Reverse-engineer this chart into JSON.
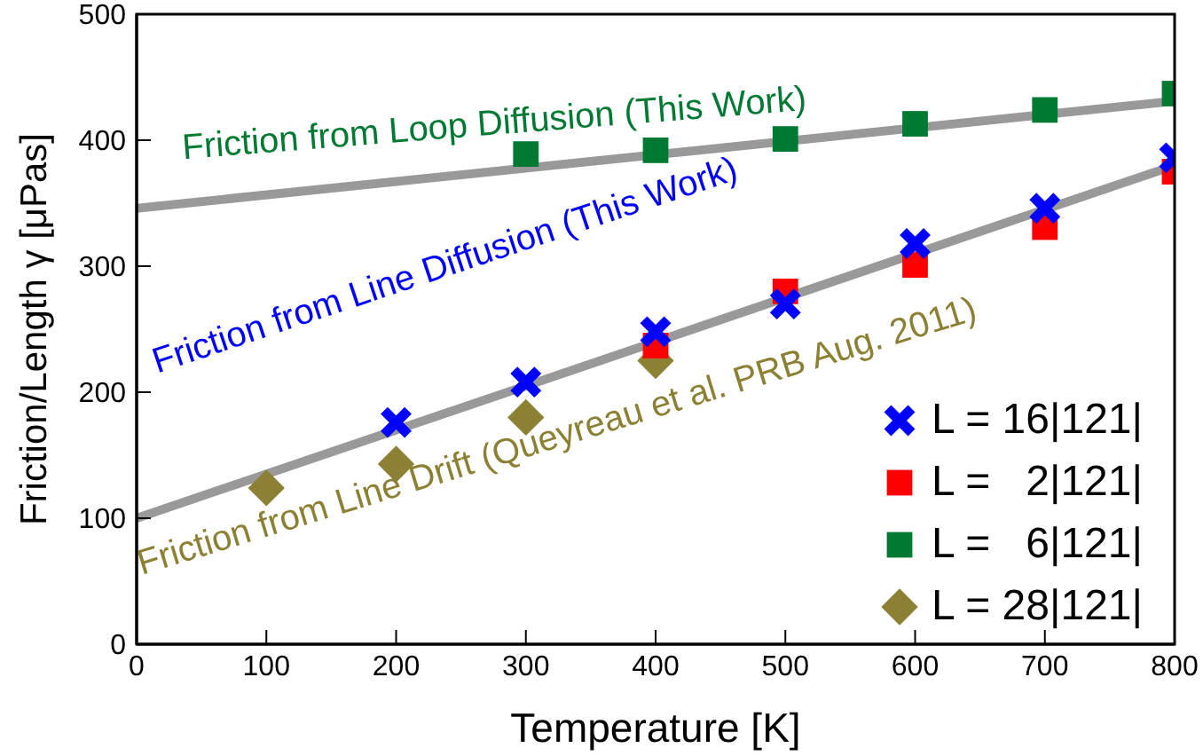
{
  "chart_data": {
    "type": "scatter",
    "xlabel": "Temperature [K]",
    "ylabel": "Friction/Length γ [μPas]",
    "xlim": [
      0,
      800
    ],
    "xticks": [
      0,
      100,
      200,
      300,
      400,
      500,
      600,
      700,
      800
    ],
    "ylim": [
      0,
      500
    ],
    "yticks": [
      0,
      100,
      200,
      300,
      400,
      500
    ],
    "legend": "bottom right",
    "series": [
      {
        "name": "L = 16|121|",
        "color": "#0000ff",
        "marker": "cross",
        "x": [
          200,
          300,
          400,
          500,
          600,
          700,
          800
        ],
        "values": [
          176,
          208,
          248,
          270,
          318,
          346,
          386
        ]
      },
      {
        "name": "L =   2|121|",
        "color": "#ff0000",
        "marker": "square",
        "x": [
          400,
          500,
          600,
          700,
          800
        ],
        "values": [
          237,
          280,
          301,
          331,
          375
        ]
      },
      {
        "name": "L =   6|121|",
        "color": "#007a33",
        "marker": "square",
        "x": [
          300,
          400,
          500,
          600,
          700,
          800
        ],
        "values": [
          389,
          392,
          401,
          413,
          424,
          437
        ]
      },
      {
        "name": "L = 28|121|",
        "color": "#8c8034",
        "marker": "diamond",
        "x": [
          100,
          200,
          300,
          400
        ],
        "values": [
          124,
          143,
          180,
          225
        ]
      },
      {
        "type": "line",
        "color": "#999999",
        "marker": "none",
        "x": [
          0,
          800
        ],
        "values": [
          346,
          431
        ]
      },
      {
        "type": "line",
        "color": "#999999",
        "marker": "none",
        "x": [
          0,
          800
        ],
        "values": [
          100,
          380
        ]
      }
    ],
    "annotations": [
      "Friction from Loop Diffusion (This Work)",
      "Friction from Line Diffusion (This Work)",
      "Friction from Line Drift (Queyreau et al. PRB Aug. 2011)"
    ]
  }
}
